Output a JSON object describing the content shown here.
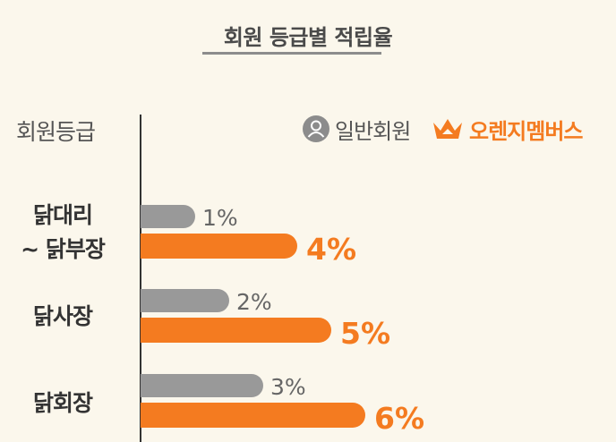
{
  "title": "회원 등급별 적립율",
  "header_label": "회원등급",
  "legend": {
    "general": {
      "label": "일반회원",
      "icon": "person-icon"
    },
    "orange": {
      "label": "오렌지멤버스",
      "icon": "crown-icon"
    }
  },
  "colors": {
    "general": "#999999",
    "orange": "#f47b20"
  },
  "chart_data": {
    "type": "bar",
    "orientation": "horizontal",
    "categories": [
      "닭대리\n~ 닭부장",
      "닭사장",
      "닭회장"
    ],
    "series": [
      {
        "name": "일반회원",
        "values": [
          1,
          2,
          3
        ],
        "labels": [
          "1%",
          "2%",
          "3%"
        ]
      },
      {
        "name": "오렌지멤버스",
        "values": [
          4,
          5,
          6
        ],
        "labels": [
          "4%",
          "5%",
          "6%"
        ]
      }
    ],
    "xlim": [
      0,
      6.6
    ]
  }
}
